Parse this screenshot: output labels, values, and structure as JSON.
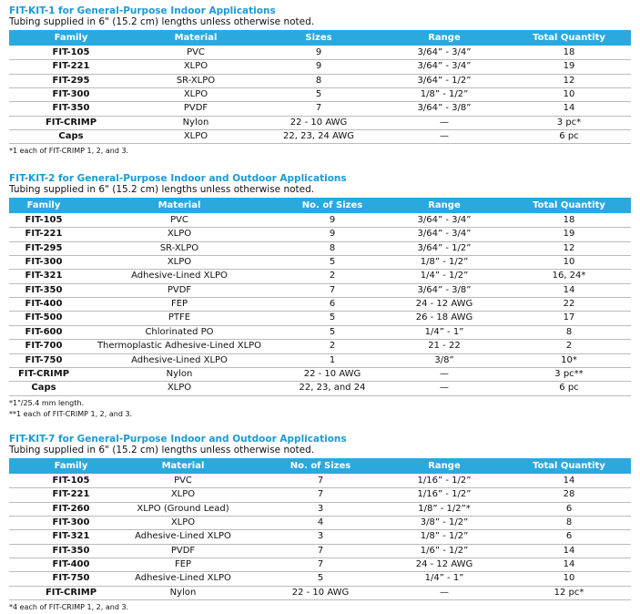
{
  "tables": [
    {
      "title": "FIT-KIT-1 for General-Purpose Indoor Applications",
      "subtitle": "Tubing supplied in 6\" (15.2 cm) lengths unless otherwise noted.",
      "header": [
        "Family",
        "Material",
        "Sizes",
        "Range",
        "Total Quantity"
      ],
      "rows": [
        [
          "FIT-105",
          "PVC",
          "9",
          "3/64” - 3/4”",
          "18"
        ],
        [
          "FIT-221",
          "XLPO",
          "9",
          "3/64” - 3/4”",
          "19"
        ],
        [
          "FIT-295",
          "SR-XLPO",
          "8",
          "3/64” - 1/2”",
          "12"
        ],
        [
          "FIT-300",
          "XLPO",
          "5",
          "1/8” - 1/2”",
          "10"
        ],
        [
          "FIT-350",
          "PVDF",
          "7",
          "3/64” - 3/8”",
          "14"
        ],
        [
          "FIT-CRIMP",
          "Nylon",
          "22 - 10 AWG",
          "—",
          "3 pc*"
        ],
        [
          "Caps",
          "XLPO",
          "22, 23, 24 AWG",
          "—",
          "6 pc"
        ]
      ],
      "footnotes": [
        "*1 each of FIT-CRIMP 1, 2, and 3."
      ]
    },
    {
      "title": "FIT-KIT-2 for General-Purpose Indoor and Outdoor Applications",
      "subtitle": "Tubing supplied in 6\" (15.2 cm) lengths unless otherwise noted.",
      "header": [
        "Family",
        "Material",
        "No. of Sizes",
        "Range",
        "Total Quantity"
      ],
      "rows": [
        [
          "FIT-105",
          "PVC",
          "9",
          "3/64” - 3/4”",
          "18"
        ],
        [
          "FIT-221",
          "XLPO",
          "9",
          "3/64” - 3/4”",
          "19"
        ],
        [
          "FIT-295",
          "SR-XLPO",
          "8",
          "3/64” - 1/2”",
          "12"
        ],
        [
          "FIT-300",
          "XLPO",
          "5",
          "1/8” - 1/2”",
          "10"
        ],
        [
          "FIT-321",
          "Adhesive-Lined XLPO",
          "2",
          "1/4” - 1/2”",
          "16, 24*"
        ],
        [
          "FIT-350",
          "PVDF",
          "7",
          "3/64” - 3/8”",
          "14"
        ],
        [
          "FIT-400",
          "FEP",
          "6",
          "24 - 12 AWG",
          "22"
        ],
        [
          "FIT-500",
          "PTFE",
          "5",
          "26 - 18 AWG",
          "17"
        ],
        [
          "FIT-600",
          "Chlorinated PO",
          "5",
          "1/4” - 1”",
          "8"
        ],
        [
          "FIT-700",
          "Thermoplastic Adhesive-Lined XLPO",
          "2",
          "21 - 22",
          "2"
        ],
        [
          "FIT-750",
          "Adhesive-Lined XLPO",
          "1",
          "3/8”",
          "10*"
        ],
        [
          "FIT-CRIMP",
          "Nylon",
          "22 - 10 AWG",
          "—",
          "3 pc**"
        ],
        [
          "Caps",
          "XLPO",
          "22, 23, and 24",
          "—",
          "6 pc"
        ]
      ],
      "footnotes": [
        "*1\"/25.4 mm length.",
        "**1 each of FIT-CRIMP 1, 2, and 3."
      ]
    },
    {
      "title": "FIT-KIT-7 for General-Purpose Indoor and Outdoor Applications",
      "subtitle": "Tubing supplied in 6\" (15.2 cm) lengths unless otherwise noted.",
      "header": [
        "Family",
        "Material",
        "No. of Sizes",
        "Range",
        "Total Quantity"
      ],
      "rows": [
        [
          "FIT-105",
          "PVC",
          "7",
          "1/16” - 1/2”",
          "14"
        ],
        [
          "FIT-221",
          "XLPO",
          "7",
          "1/16” - 1/2”",
          "28"
        ],
        [
          "FIT-260",
          "XLPO (Ground Lead)",
          "3",
          "1/8” - 1/2”*",
          "6"
        ],
        [
          "FIT-300",
          "XLPO",
          "4",
          "3/8” - 1/2”",
          "8"
        ],
        [
          "FIT-321",
          "Adhesive-Lined XLPO",
          "3",
          "1/8” - 1/2”",
          "6"
        ],
        [
          "FIT-350",
          "PVDF",
          "7",
          "1/6” - 1/2”",
          "14"
        ],
        [
          "FIT-400",
          "FEP",
          "7",
          "24 - 12 AWG",
          "14"
        ],
        [
          "FIT-750",
          "Adhesive-Lined XLPO",
          "5",
          "1/4” - 1”",
          "10"
        ],
        [
          "FIT-CRIMP",
          "Nylon",
          "22 - 10 AWG",
          "—",
          "12 pc*"
        ]
      ],
      "footnotes": [
        "*4 each of FIT-CRIMP 1, 2, and 3."
      ]
    }
  ]
}
